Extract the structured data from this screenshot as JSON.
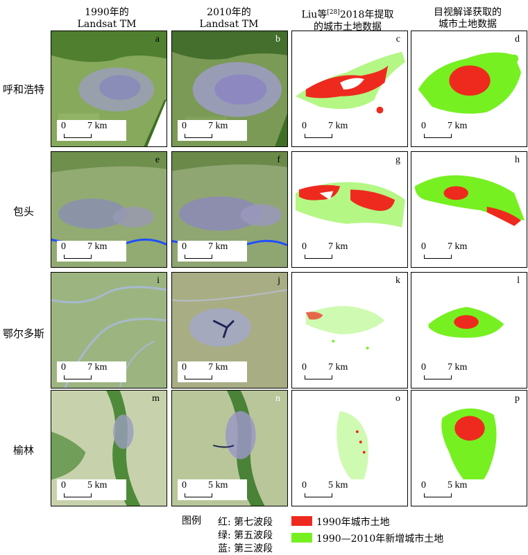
{
  "columns": [
    {
      "line1": "1990年的",
      "line2": "Landsat TM"
    },
    {
      "line1": "2010年的",
      "line2": "Landsat TM"
    },
    {
      "line1_pre": "Liu等",
      "line1_sup": "[28]",
      "line1_post": "2018年提取",
      "line2": "的城市土地数据"
    },
    {
      "line1": "目视解译获取的",
      "line2": "城市土地数据"
    }
  ],
  "rows": [
    {
      "label": "呼和浩特",
      "scale": "7 km",
      "panels": [
        "a",
        "b",
        "c",
        "d"
      ]
    },
    {
      "label": "包头",
      "scale": "7 km",
      "panels": [
        "e",
        "f",
        "g",
        "h"
      ]
    },
    {
      "label": "鄂尔多斯",
      "scale": "7 km",
      "panels": [
        "i",
        "j",
        "k",
        "l"
      ]
    },
    {
      "label": "榆林",
      "scale": "5 km",
      "panels": [
        "m",
        "n",
        "o",
        "p"
      ]
    }
  ],
  "scale_zero": "0",
  "legend": {
    "title": "图例",
    "bands": [
      "红: 第七波段",
      "绿: 第五波段",
      "蓝: 第三波段"
    ],
    "items": [
      {
        "label": "1990年城市土地",
        "color": "#ee2a1e"
      },
      {
        "label": "1990—2010年新增城市土地",
        "color": "#76f021"
      }
    ]
  },
  "colors": {
    "urban_1990": "#ee2a1e",
    "urban_new": "#76f021",
    "river": "#1f4fff",
    "vegetation": "#5f8f3c",
    "builtup": "#8f8fb0"
  }
}
